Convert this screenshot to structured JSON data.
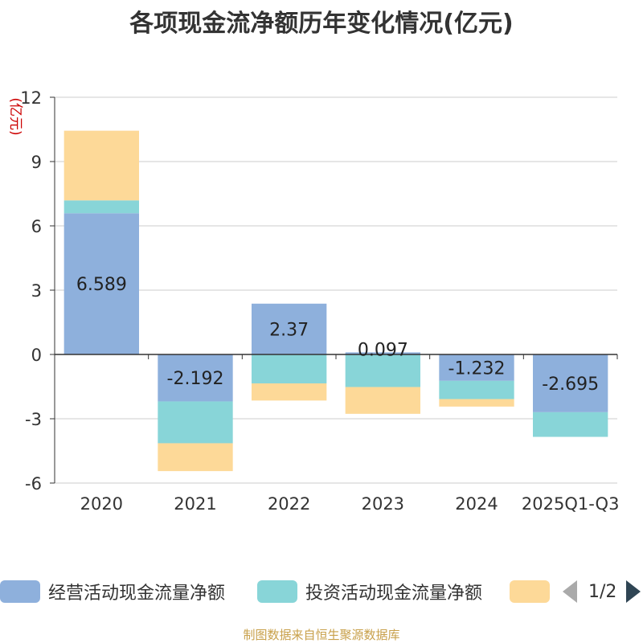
{
  "title": "各项现金流净额历年变化情况(亿元)",
  "footer": "制图数据来自恒生聚源数据库",
  "pager_text": "1/2",
  "colors": {
    "operating": "#8eb0dc",
    "investing": "#88d5d8",
    "financing": "#fdd998",
    "axis": "#333333",
    "grid": "#cccccc",
    "unit": "#cc0000"
  },
  "chart_data": {
    "type": "bar",
    "stacked": true,
    "title": "各项现金流净额历年变化情况(亿元)",
    "ylabel": "(亿元)",
    "xlabel": "",
    "ylim": [
      -6,
      12
    ],
    "yticks": [
      12,
      9,
      6,
      3,
      0,
      -3,
      -6
    ],
    "categories": [
      "2020",
      "2021",
      "2022",
      "2023",
      "2024",
      "2025Q1-Q3"
    ],
    "series": [
      {
        "name": "经营活动现金流量净额",
        "color_key": "operating",
        "values": [
          6.589,
          -2.192,
          2.37,
          0.097,
          -1.232,
          -2.695
        ],
        "labels": [
          "6.589",
          "-2.192",
          "2.37",
          "0.097",
          "-1.232",
          "-2.695"
        ]
      },
      {
        "name": "投资活动现金流量净额",
        "color_key": "investing",
        "values": [
          0.6,
          -1.95,
          -1.35,
          -1.52,
          -0.85,
          -1.15
        ]
      },
      {
        "name": "",
        "color_key": "financing",
        "values": [
          3.25,
          -1.3,
          -0.8,
          -1.25,
          -0.35,
          0
        ]
      }
    ]
  }
}
